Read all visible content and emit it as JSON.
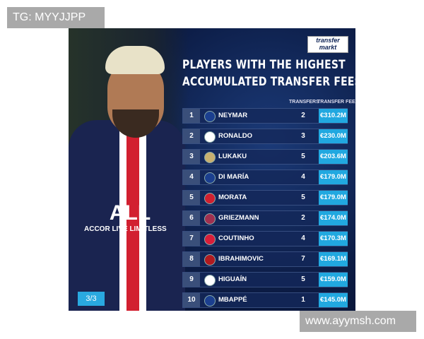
{
  "watermark_top": "TG: MYYJJPP",
  "watermark_bottom": "www.ayymsh.com",
  "logo": {
    "line1": "transfer",
    "line2": "markt"
  },
  "title": {
    "line1": "PLAYERS WITH THE HIGHEST",
    "line2": "ACCUMULATED TRANSFER FEES"
  },
  "columns": {
    "transfers": "TRANSFERS",
    "fee": "TRANSFER FEE"
  },
  "sponsor": {
    "line1": "ALL",
    "line2": "ACCOR LIVE LIMITLESS"
  },
  "page_indicator": "3/3",
  "rows": [
    {
      "rank": "1",
      "club": "psg-badge",
      "player": "NEYMAR",
      "transfers": "2",
      "fee": "€310.2M",
      "color": "#1b3f8f"
    },
    {
      "rank": "2",
      "club": "juventus-badge",
      "player": "RONALDO",
      "transfers": "3",
      "fee": "€230.0M",
      "color": "#ffffff"
    },
    {
      "rank": "3",
      "club": "inter-badge",
      "player": "LUKAKU",
      "transfers": "5",
      "fee": "€203.6M",
      "color": "#c8b070"
    },
    {
      "rank": "4",
      "club": "psg-badge",
      "player": "DI MARÍA",
      "transfers": "4",
      "fee": "€179.0M",
      "color": "#1b3f8f"
    },
    {
      "rank": "5",
      "club": "atletico-badge",
      "player": "MORATA",
      "transfers": "5",
      "fee": "€179.0M",
      "color": "#d02030"
    },
    {
      "rank": "6",
      "club": "barcelona-badge",
      "player": "GRIEZMANN",
      "transfers": "2",
      "fee": "€174.0M",
      "color": "#a03050"
    },
    {
      "rank": "7",
      "club": "bayern-badge",
      "player": "COUTINHO",
      "transfers": "4",
      "fee": "€170.3M",
      "color": "#d81e3a"
    },
    {
      "rank": "8",
      "club": "milan-badge",
      "player": "IBRAHIMOVIC",
      "transfers": "7",
      "fee": "€169.1M",
      "color": "#b01a20"
    },
    {
      "rank": "9",
      "club": "juventus-badge",
      "player": "HIGUAÍN",
      "transfers": "5",
      "fee": "€159.0M",
      "color": "#ffffff"
    },
    {
      "rank": "10",
      "club": "psg-badge",
      "player": "MBAPPÉ",
      "transfers": "1",
      "fee": "€145.0M",
      "color": "#1b3f8f"
    }
  ]
}
